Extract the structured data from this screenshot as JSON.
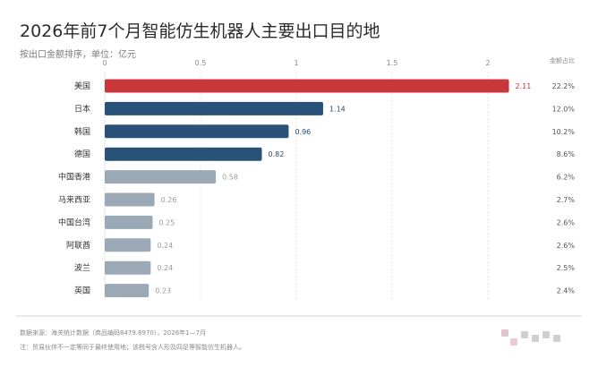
{
  "title": "2026年前7个月智能仿生机器人主要出口目的地",
  "subtitle": "按出口金额排序，单位：亿元",
  "share_header": "金额占比",
  "footnotes": {
    "source": "数据来源：海关统计数据（商品编码8479.8970），2026年1—7月",
    "note": "注：贸易伙伴不一定等同于最终使用地；该税号含人形及四足等智能仿生机器人。"
  },
  "chart_data": {
    "type": "bar",
    "orientation": "horizontal",
    "title": "2026年前7个月智能仿生机器人主要出口目的地",
    "xlim": [
      0,
      2.5
    ],
    "xticks": [
      0,
      0.5,
      1,
      1.5,
      2
    ],
    "xtick_labels": [
      "0",
      "0.5",
      "1",
      "1.5",
      "2"
    ],
    "grid": true,
    "categories": [
      "美国",
      "日本",
      "韩国",
      "德国",
      "中国香港",
      "马来西亚",
      "中国台湾",
      "阿联酋",
      "波兰",
      "英国"
    ],
    "values": [
      2.11,
      1.14,
      0.96,
      0.82,
      0.58,
      0.26,
      0.25,
      0.24,
      0.24,
      0.23
    ],
    "value_labels": [
      "2.11",
      "1.14",
      "0.96",
      "0.82",
      "0.58",
      "0.26",
      "0.25",
      "0.24",
      "0.24",
      "0.23"
    ],
    "shares": [
      "22.2%",
      "12.0%",
      "10.2%",
      "8.6%",
      "6.2%",
      "2.7%",
      "2.6%",
      "2.6%",
      "2.5%",
      "2.4%"
    ],
    "bar_colors": [
      "#c8373a",
      "#2a5278",
      "#2a5278",
      "#2a5278",
      "#9ba8b6",
      "#9ba8b6",
      "#9ba8b6",
      "#9ba8b6",
      "#9ba8b6",
      "#9ba8b6"
    ]
  }
}
